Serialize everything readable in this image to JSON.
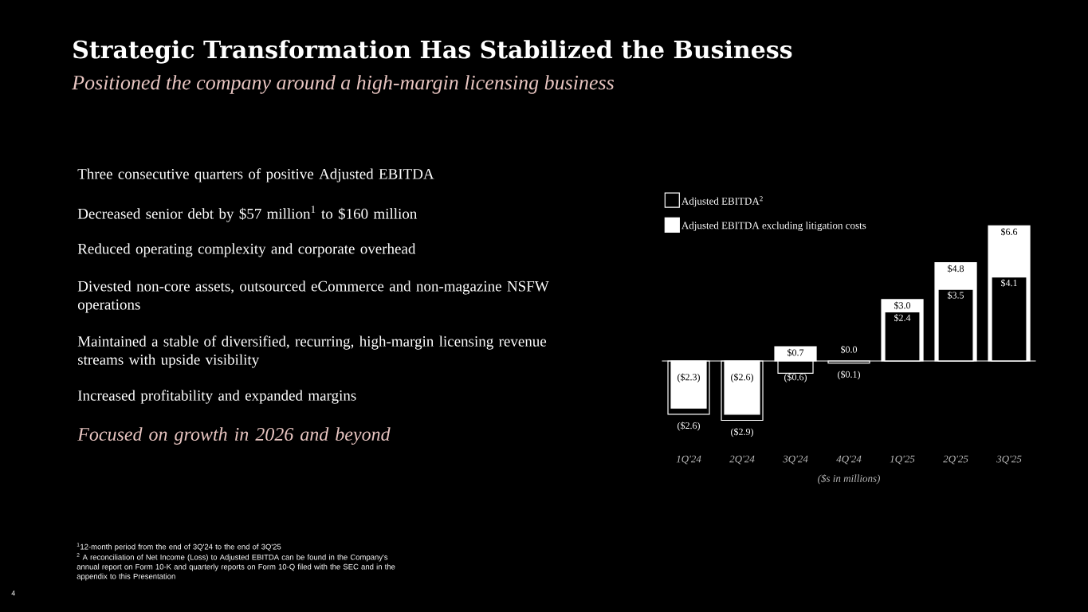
{
  "chart_data": {
    "type": "bar",
    "title": "Strategic Transformation Has Stabilized the Business",
    "subtitle": "Positioned the company around a high-margin licensing business",
    "xlabel": "($s in millions)",
    "categories": [
      "1Q'24",
      "2Q'24",
      "3Q'24",
      "4Q'24",
      "1Q'25",
      "2Q'25",
      "3Q'25"
    ],
    "series": [
      {
        "name": "Adjusted EBITDA$^{2}$",
        "color": "#000000",
        "values": [
          -2.6,
          -2.9,
          -0.6,
          -0.1,
          2.4,
          3.5,
          4.1
        ],
        "value_labels": [
          "($2.6)",
          "($2.9)",
          "($0.6)",
          "($0.1)",
          "$2.4",
          "$3.5",
          "$4.1"
        ]
      },
      {
        "name": "Adjusted EBITDA excluding litigation costs",
        "color": "#ffffff",
        "values": [
          -2.3,
          -2.6,
          0.7,
          0.0,
          3.0,
          4.8,
          6.6
        ],
        "value_labels": [
          "($2.3)",
          "($2.6)",
          "$0.7",
          "$0.0",
          "$3.0",
          "$4.8",
          "$6.6"
        ]
      }
    ],
    "legend": "top left",
    "annotations": [
      "Three consecutive quarters of positive Adjusted EBITDA",
      "Decreased senior debt by $57 million$^{1}$ to $160 million",
      "Reduced operating complexity and corporate overhead",
      "Divested non-core assets, outsourced eCommerce and non-magazine NSFW operations",
      "Maintained a stable of diversified, recurring, high-margin licensing revenue  streams with upside visibility",
      "Increased profitability and expanded margins",
      "Focused on growth in 2026 and beyond",
      "$^{1}$12-month period from the end of 3Q'24 to the end of 3Q'25",
      "$^{2}$ A reconciliation of Net Income (Loss) to Adjusted EBITDA can be found in the Company's annual report on Form 10-K and quarterly reports on Form 10-Q filed with the SEC and in the appendix to this Presentation",
      "4"
    ]
  }
}
